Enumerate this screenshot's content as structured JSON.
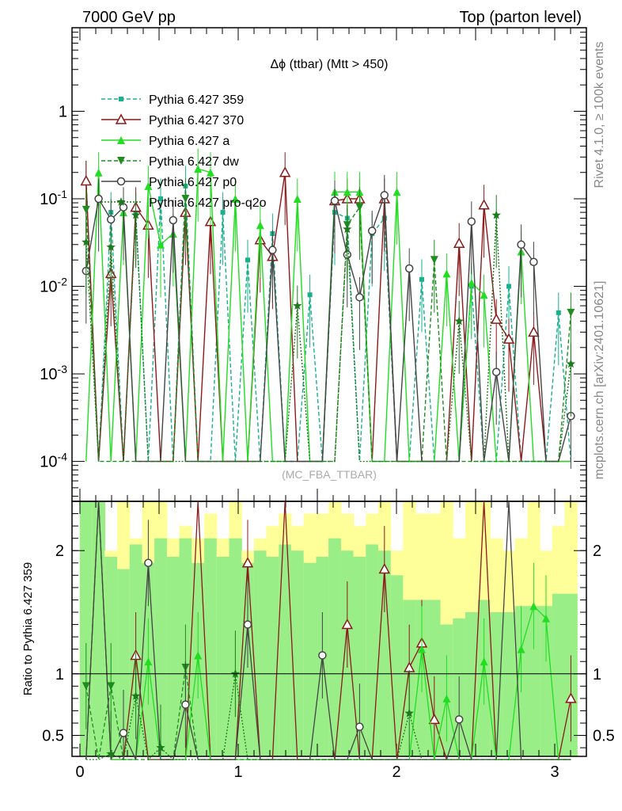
{
  "header": {
    "left": "7000 GeV pp",
    "right": "Top (parton level)"
  },
  "side_labels": {
    "top": "Rivet 4.1.0, ≥ 100k events",
    "bottom": "mcplots.cern.ch [arXiv:2401.10621]"
  },
  "chart_data": {
    "type": "line",
    "title": "Δϕ (ttbar) (Mtt > 450)",
    "watermark": "(MC_FBA_TTBAR)",
    "xlabel": "",
    "ylabel_ratio": "Ratio to Pythia 6.427 359",
    "xlim": [
      -0.05,
      3.2
    ],
    "ylim": [
      3.5e-05,
      9
    ],
    "ylog": true,
    "ratio_ylim": [
      0.33,
      2.4
    ],
    "x_ticks": [
      "0",
      "1",
      "2",
      "3"
    ],
    "y_ticks": [
      "10^-4",
      "10^-3",
      "10^-2",
      "10^-1",
      "1"
    ],
    "ratio_ticks": [
      "0.5",
      "1",
      "2"
    ],
    "legend": [
      {
        "name": "Pythia 6.427 359",
        "color": "#1ab08c",
        "marker": "square",
        "dash": "dashed"
      },
      {
        "name": "Pythia 6.427 370",
        "color": "#8b1a1a",
        "marker": "open-triangle",
        "dash": "solid"
      },
      {
        "name": "Pythia 6.427 a",
        "color": "#22dd22",
        "marker": "triangle",
        "dash": "solid"
      },
      {
        "name": "Pythia 6.427 dw",
        "color": "#1e8c1e",
        "marker": "down-triangle",
        "dash": "dashed"
      },
      {
        "name": "Pythia 6.427 p0",
        "color": "#444444",
        "marker": "open-circle",
        "dash": "solid"
      },
      {
        "name": "Pythia 6.427 pro-q2o",
        "color": "#1e7a1e",
        "marker": "star",
        "dash": "dotted"
      }
    ],
    "x": [
      0.039,
      0.118,
      0.196,
      0.275,
      0.353,
      0.432,
      0.51,
      0.589,
      0.667,
      0.746,
      0.825,
      0.903,
      0.982,
      1.06,
      1.139,
      1.217,
      1.296,
      1.374,
      1.453,
      1.532,
      1.61,
      1.689,
      1.767,
      1.846,
      1.924,
      2.003,
      2.081,
      2.16,
      2.239,
      2.317,
      2.396,
      2.474,
      2.553,
      2.631,
      2.71,
      2.788,
      2.867,
      2.945,
      3.024,
      3.102
    ],
    "series": [
      {
        "name": "Pythia 6.427 359",
        "values": [
          0.16,
          0.0001,
          0.07,
          0.0001,
          0.07,
          0.0001,
          0.1,
          0.0001,
          0.14,
          0.0001,
          0.0001,
          0.07,
          0.0001,
          0.02,
          0.0001,
          0.04,
          0.0001,
          0.0001,
          0.008,
          0.0001,
          0.07,
          0.06,
          0.0001,
          0.04,
          0.06,
          0.0001,
          0.0001,
          0.012,
          0.0001,
          0.0001,
          0.0001,
          0.01,
          0.0001,
          0.0001,
          0.01,
          0.0001,
          0.0001,
          0.0001,
          0.005,
          0.0001
        ]
      },
      {
        "name": "Pythia 6.427 370",
        "values": [
          0.16,
          0.0001,
          0.014,
          0.0001,
          0.08,
          0.05,
          0.0001,
          0.0001,
          0.07,
          0.0001,
          0.055,
          0.0001,
          0.0001,
          0.0001,
          0.034,
          0.022,
          0.2,
          0.0001,
          0.0001,
          0.0001,
          0.095,
          0.1,
          0.1,
          0.0001,
          0.1,
          0.0001,
          0.0001,
          0.0001,
          0.0001,
          0.0001,
          0.031,
          0.0001,
          0.085,
          0.0042,
          0.0025,
          0.0001,
          0.003,
          0.0001,
          0.0001,
          0.0001
        ]
      },
      {
        "name": "Pythia 6.427 a",
        "values": [
          0.0001,
          0.2,
          0.0001,
          0.07,
          0.0001,
          0.14,
          0.03,
          0.04,
          0.0001,
          0.22,
          0.2,
          0.0001,
          0.1,
          0.0001,
          0.05,
          0.0001,
          0.0001,
          0.1,
          0.0001,
          0.0001,
          0.12,
          0.12,
          0.12,
          0.0001,
          0.0001,
          0.12,
          0.0001,
          0.0001,
          0.0001,
          0.014,
          0.0001,
          0.011,
          0.008,
          0.0001,
          0.0001,
          0.025,
          0.0001,
          0.0001,
          0.0001,
          0.0001
        ]
      },
      {
        "name": "Pythia 6.427 dw",
        "values": [
          0.075,
          0.0001,
          0.0001,
          0.0001,
          0.0001,
          0.0001,
          0.0001,
          0.0001,
          0.1,
          0.0001,
          0.0001,
          0.0001,
          0.0001,
          0.0001,
          0.0001,
          0.0001,
          0.0001,
          0.0001,
          0.0001,
          0.0001,
          0.0001,
          0.05,
          0.08,
          0.0001,
          0.0001,
          0.0001,
          0.0001,
          0.0001,
          0.02,
          0.0001,
          0.0001,
          0.0001,
          0.0001,
          0.0001,
          0.0001,
          0.0001,
          0.0001,
          0.0001,
          0.0001,
          0.005
        ]
      },
      {
        "name": "Pythia 6.427 p0",
        "values": [
          0.015,
          0.1,
          0.058,
          0.08,
          0.0001,
          0.0001,
          0.0001,
          0.057,
          0.0001,
          0.0001,
          0.0001,
          0.0001,
          0.0001,
          0.0001,
          0.0001,
          0.026,
          0.0001,
          0.0001,
          0.0001,
          0.0001,
          0.095,
          0.023,
          0.0075,
          0.043,
          0.11,
          0.0001,
          0.016,
          0.0001,
          0.0001,
          0.0001,
          0.0001,
          0.055,
          0.0001,
          0.00105,
          0.0001,
          0.03,
          0.019,
          0.0001,
          0.0001,
          0.00033
        ]
      },
      {
        "name": "Pythia 6.427 pro-q2o",
        "values": [
          0.032,
          0.0001,
          0.028,
          0.0001,
          0.065,
          0.0001,
          0.0001,
          0.0001,
          0.0001,
          0.0001,
          0.0001,
          0.0001,
          0.0001,
          0.0001,
          0.0001,
          0.0001,
          0.0001,
          0.006,
          0.0001,
          0.0001,
          0.0001,
          0.045,
          0.0001,
          0.0001,
          0.0001,
          0.0001,
          0.0001,
          0.0001,
          0.0001,
          0.0001,
          0.004,
          0.0001,
          0.0001,
          0.065,
          0.0001,
          0.0001,
          0.0001,
          0.0001,
          0.0001,
          0.0013
        ]
      }
    ],
    "ratio_series": [
      {
        "name": "Pythia 6.427 370",
        "values": [
          0.25,
          2.4,
          0.25,
          0.25,
          1.15,
          0.25,
          0.25,
          0.25,
          0.25,
          2.4,
          0.25,
          0.25,
          0.25,
          1.9,
          0.25,
          0.25,
          2.4,
          0.25,
          0.25,
          0.25,
          0.25,
          1.4,
          0.25,
          0.25,
          1.85,
          0.25,
          1.05,
          1.25,
          0.63,
          0.25,
          0.25,
          0.25,
          2.4,
          0.25,
          0.25,
          0.25,
          0.25,
          0.25,
          0.25,
          0.8
        ]
      },
      {
        "name": "Pythia 6.427 a",
        "values": [
          0.25,
          2.4,
          0.25,
          0.25,
          0.25,
          1.1,
          0.25,
          0.25,
          0.25,
          1.15,
          0.25,
          0.25,
          0.25,
          0.25,
          0.25,
          0.25,
          0.25,
          0.25,
          0.25,
          0.25,
          0.25,
          0.25,
          0.25,
          0.25,
          0.25,
          0.25,
          0.25,
          1.2,
          0.25,
          0.8,
          0.25,
          0.25,
          1.1,
          0.25,
          0.25,
          1.2,
          1.55,
          1.45,
          0.25,
          0.25
        ]
      },
      {
        "name": "Pythia 6.427 dw",
        "values": [
          0.9,
          0.25,
          0.9,
          0.25,
          0.25,
          0.25,
          0.25,
          0.25,
          1.05,
          0.25,
          0.25,
          0.25,
          0.25,
          0.25,
          0.25,
          0.25,
          0.25,
          0.25,
          0.25,
          0.25,
          0.25,
          0.25,
          0.25,
          0.25,
          0.25,
          0.25,
          0.25,
          0.25,
          0.25,
          0.25,
          0.25,
          0.25,
          0.25,
          0.25,
          0.25,
          0.25,
          0.25,
          0.25,
          0.25,
          0.25
        ]
      },
      {
        "name": "Pythia 6.427 p0",
        "values": [
          0.25,
          2.4,
          0.25,
          0.52,
          0.25,
          1.9,
          0.25,
          0.25,
          0.75,
          0.25,
          0.25,
          0.25,
          0.25,
          1.4,
          0.25,
          0.25,
          0.25,
          0.25,
          0.25,
          1.15,
          0.25,
          0.25,
          0.57,
          0.25,
          0.25,
          0.25,
          0.25,
          0.25,
          0.25,
          0.25,
          0.63,
          0.25,
          0.25,
          0.25,
          2.4,
          0.25,
          0.25,
          0.25,
          0.25,
          0.25
        ]
      },
      {
        "name": "Pythia 6.427 pro-q2o",
        "values": [
          0.25,
          0.25,
          0.35,
          0.25,
          0.82,
          0.25,
          0.4,
          0.25,
          0.25,
          0.25,
          0.25,
          0.25,
          1.0,
          0.25,
          0.25,
          0.25,
          0.25,
          0.25,
          0.25,
          0.25,
          0.25,
          0.25,
          0.25,
          0.25,
          0.25,
          0.25,
          0.68,
          0.25,
          0.25,
          0.25,
          0.25,
          0.25,
          0.25,
          0.25,
          0.25,
          0.25,
          0.25,
          0.25,
          0.25,
          0.25
        ]
      }
    ],
    "ratio_band_yellow": [
      2.4,
      2.4,
      2.0,
      2.4,
      2.1,
      2.4,
      2.4,
      2.1,
      2.2,
      2.1,
      2.3,
      2.1,
      2.4,
      2.0,
      2.1,
      2.2,
      2.3,
      2.2,
      2.3,
      2.3,
      2.4,
      2.3,
      2.2,
      2.3,
      2.4,
      2.0,
      2.4,
      2.3,
      2.3,
      2.4,
      2.1,
      2.4,
      2.4,
      2.1,
      2.0,
      2.1,
      2.4,
      2.0,
      2.2,
      2.4
    ],
    "ratio_band_green": [
      2.4,
      2.4,
      1.95,
      1.85,
      2.05,
      1.9,
      2.1,
      1.95,
      2.1,
      1.9,
      2.1,
      1.95,
      2.1,
      1.9,
      2.0,
      1.95,
      2.05,
      2.0,
      1.9,
      1.95,
      2.1,
      2.0,
      1.95,
      2.05,
      2.0,
      1.8,
      1.6,
      1.6,
      1.6,
      1.4,
      1.45,
      1.5,
      1.6,
      1.5,
      1.5,
      1.55,
      1.55,
      1.55,
      1.65,
      1.65
    ]
  }
}
